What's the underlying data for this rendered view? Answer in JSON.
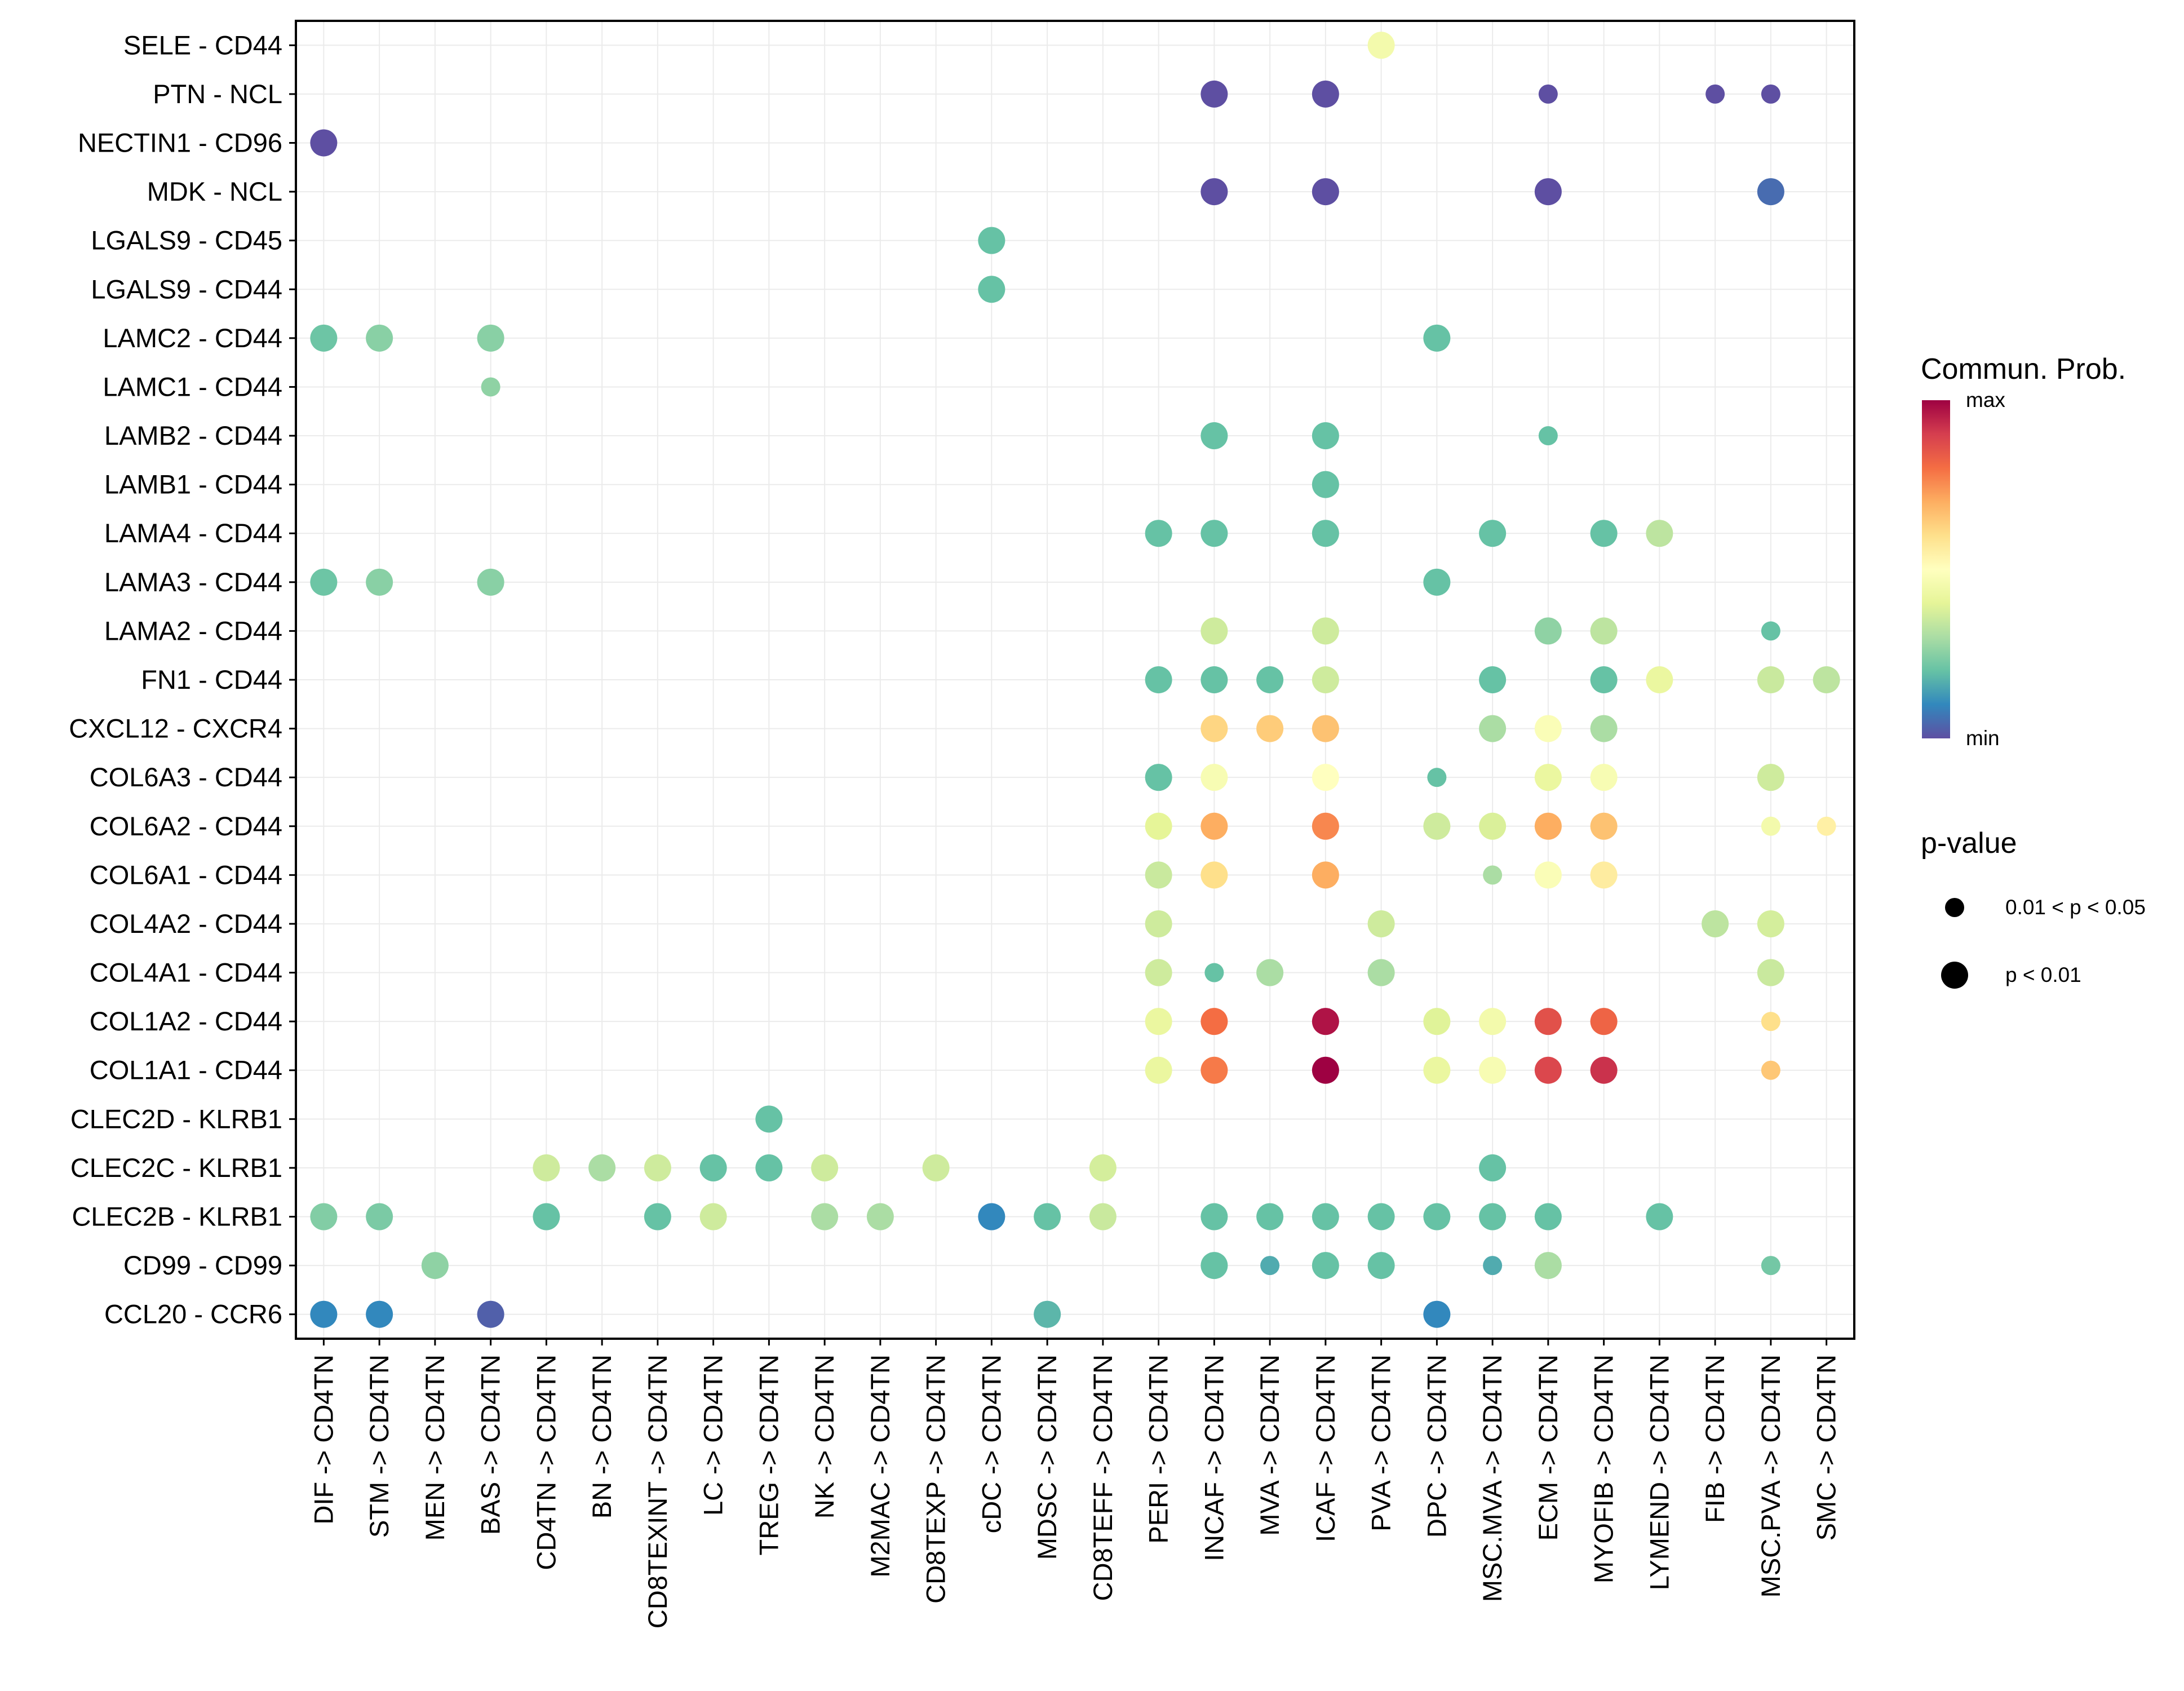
{
  "chart_data": {
    "type": "scatter",
    "subtype": "dot-plot",
    "title": "",
    "xlabel": "",
    "ylabel": "",
    "grid": true,
    "x_categories": [
      "DIF -> CD4TN",
      "STM -> CD4TN",
      "MEN -> CD4TN",
      "BAS -> CD4TN",
      "CD4TN -> CD4TN",
      "BN -> CD4TN",
      "CD8TEXINT -> CD4TN",
      "LC -> CD4TN",
      "TREG -> CD4TN",
      "NK -> CD4TN",
      "M2MAC -> CD4TN",
      "CD8TEXP -> CD4TN",
      "cDC -> CD4TN",
      "MDSC -> CD4TN",
      "CD8TEFF -> CD4TN",
      "PERI -> CD4TN",
      "INCAF -> CD4TN",
      "MVA -> CD4TN",
      "ICAF -> CD4TN",
      "PVA -> CD4TN",
      "DPC -> CD4TN",
      "MSC.MVA -> CD4TN",
      "ECM -> CD4TN",
      "MYOFIB -> CD4TN",
      "LYMEND -> CD4TN",
      "FIB -> CD4TN",
      "MSC.PVA -> CD4TN",
      "SMC -> CD4TN"
    ],
    "y_categories": [
      "SELE - CD44",
      "PTN - NCL",
      "NECTIN1 - CD96",
      "MDK - NCL",
      "LGALS9 - CD45",
      "LGALS9 - CD44",
      "LAMC2 - CD44",
      "LAMC1 - CD44",
      "LAMB2 - CD44",
      "LAMB1 - CD44",
      "LAMA4 - CD44",
      "LAMA3 - CD44",
      "LAMA2 - CD44",
      "FN1 - CD44",
      "CXCL12 - CXCR4",
      "COL6A3 - CD44",
      "COL6A2 - CD44",
      "COL6A1 - CD44",
      "COL4A2 - CD44",
      "COL4A1 - CD44",
      "COL1A2 - CD44",
      "COL1A1 - CD44",
      "CLEC2D - KLRB1",
      "CLEC2C - KLRB1",
      "CLEC2B - KLRB1",
      "CD99 - CD99",
      "CCL20 - CCR6"
    ],
    "color_legend": {
      "title": "Commun. Prob.",
      "max_label": "max",
      "min_label": "min",
      "palette": [
        "#5E4FA2",
        "#3288BD",
        "#66C2A5",
        "#ABDDA4",
        "#E6F598",
        "#FFFFBF",
        "#FEE08B",
        "#FDAE61",
        "#F46D43",
        "#D53E4F",
        "#9E0142"
      ]
    },
    "size_legend": {
      "title": "p-value",
      "levels": [
        {
          "label": "0.01 < p < 0.05",
          "key": "s"
        },
        {
          "label": "p < 0.01",
          "key": "l"
        }
      ]
    },
    "points_columns": [
      "x_index",
      "y_index",
      "prob_relative",
      "p_level"
    ],
    "points": [
      [
        19,
        0,
        0.45,
        "l"
      ],
      [
        16,
        1,
        0.0,
        "l"
      ],
      [
        18,
        1,
        0.0,
        "l"
      ],
      [
        22,
        1,
        0.0,
        "s"
      ],
      [
        25,
        1,
        0.0,
        "s"
      ],
      [
        26,
        1,
        0.0,
        "s"
      ],
      [
        0,
        2,
        0.0,
        "l"
      ],
      [
        16,
        3,
        0.0,
        "l"
      ],
      [
        18,
        3,
        0.0,
        "l"
      ],
      [
        22,
        3,
        0.0,
        "l"
      ],
      [
        26,
        3,
        0.05,
        "l"
      ],
      [
        12,
        4,
        0.2,
        "l"
      ],
      [
        12,
        5,
        0.2,
        "l"
      ],
      [
        0,
        6,
        0.21,
        "l"
      ],
      [
        1,
        6,
        0.25,
        "l"
      ],
      [
        3,
        6,
        0.25,
        "l"
      ],
      [
        20,
        6,
        0.2,
        "l"
      ],
      [
        3,
        7,
        0.26,
        "s"
      ],
      [
        16,
        8,
        0.2,
        "l"
      ],
      [
        18,
        8,
        0.2,
        "l"
      ],
      [
        22,
        8,
        0.2,
        "s"
      ],
      [
        18,
        9,
        0.2,
        "l"
      ],
      [
        15,
        10,
        0.2,
        "l"
      ],
      [
        16,
        10,
        0.2,
        "l"
      ],
      [
        18,
        10,
        0.2,
        "l"
      ],
      [
        21,
        10,
        0.2,
        "l"
      ],
      [
        23,
        10,
        0.2,
        "l"
      ],
      [
        24,
        10,
        0.33,
        "l"
      ],
      [
        0,
        11,
        0.21,
        "l"
      ],
      [
        1,
        11,
        0.25,
        "l"
      ],
      [
        3,
        11,
        0.25,
        "l"
      ],
      [
        20,
        11,
        0.2,
        "l"
      ],
      [
        16,
        12,
        0.36,
        "l"
      ],
      [
        18,
        12,
        0.36,
        "l"
      ],
      [
        22,
        12,
        0.26,
        "l"
      ],
      [
        23,
        12,
        0.33,
        "l"
      ],
      [
        26,
        12,
        0.2,
        "s"
      ],
      [
        15,
        13,
        0.2,
        "l"
      ],
      [
        16,
        13,
        0.2,
        "l"
      ],
      [
        17,
        13,
        0.2,
        "l"
      ],
      [
        18,
        13,
        0.36,
        "l"
      ],
      [
        21,
        13,
        0.2,
        "l"
      ],
      [
        23,
        13,
        0.2,
        "l"
      ],
      [
        24,
        13,
        0.42,
        "l"
      ],
      [
        26,
        13,
        0.35,
        "l"
      ],
      [
        27,
        13,
        0.33,
        "l"
      ],
      [
        16,
        14,
        0.62,
        "l"
      ],
      [
        17,
        14,
        0.64,
        "l"
      ],
      [
        18,
        14,
        0.66,
        "l"
      ],
      [
        21,
        14,
        0.3,
        "l"
      ],
      [
        22,
        14,
        0.48,
        "l"
      ],
      [
        23,
        14,
        0.3,
        "l"
      ],
      [
        15,
        15,
        0.2,
        "l"
      ],
      [
        16,
        15,
        0.47,
        "l"
      ],
      [
        18,
        15,
        0.5,
        "l"
      ],
      [
        20,
        15,
        0.2,
        "s"
      ],
      [
        22,
        15,
        0.42,
        "l"
      ],
      [
        23,
        15,
        0.47,
        "l"
      ],
      [
        26,
        15,
        0.36,
        "l"
      ],
      [
        15,
        16,
        0.4,
        "l"
      ],
      [
        16,
        16,
        0.7,
        "l"
      ],
      [
        18,
        16,
        0.76,
        "l"
      ],
      [
        20,
        16,
        0.36,
        "l"
      ],
      [
        21,
        16,
        0.38,
        "l"
      ],
      [
        22,
        16,
        0.7,
        "l"
      ],
      [
        23,
        16,
        0.66,
        "l"
      ],
      [
        26,
        16,
        0.45,
        "s"
      ],
      [
        27,
        16,
        0.55,
        "s"
      ],
      [
        15,
        17,
        0.35,
        "l"
      ],
      [
        16,
        17,
        0.6,
        "l"
      ],
      [
        18,
        17,
        0.7,
        "l"
      ],
      [
        21,
        17,
        0.3,
        "s"
      ],
      [
        22,
        17,
        0.48,
        "l"
      ],
      [
        23,
        17,
        0.56,
        "l"
      ],
      [
        15,
        18,
        0.36,
        "l"
      ],
      [
        19,
        18,
        0.36,
        "l"
      ],
      [
        25,
        18,
        0.33,
        "l"
      ],
      [
        26,
        18,
        0.37,
        "l"
      ],
      [
        15,
        19,
        0.36,
        "l"
      ],
      [
        16,
        19,
        0.2,
        "s"
      ],
      [
        17,
        19,
        0.3,
        "l"
      ],
      [
        19,
        19,
        0.3,
        "l"
      ],
      [
        26,
        19,
        0.35,
        "l"
      ],
      [
        15,
        20,
        0.42,
        "l"
      ],
      [
        16,
        20,
        0.8,
        "l"
      ],
      [
        18,
        20,
        0.97,
        "l"
      ],
      [
        20,
        20,
        0.39,
        "l"
      ],
      [
        21,
        20,
        0.45,
        "l"
      ],
      [
        22,
        20,
        0.86,
        "l"
      ],
      [
        23,
        20,
        0.82,
        "l"
      ],
      [
        26,
        20,
        0.6,
        "s"
      ],
      [
        15,
        21,
        0.42,
        "l"
      ],
      [
        16,
        21,
        0.78,
        "l"
      ],
      [
        18,
        21,
        1.0,
        "l"
      ],
      [
        20,
        21,
        0.42,
        "l"
      ],
      [
        21,
        21,
        0.47,
        "l"
      ],
      [
        22,
        21,
        0.88,
        "l"
      ],
      [
        23,
        21,
        0.92,
        "l"
      ],
      [
        26,
        21,
        0.65,
        "s"
      ],
      [
        8,
        22,
        0.2,
        "l"
      ],
      [
        4,
        23,
        0.36,
        "l"
      ],
      [
        5,
        23,
        0.3,
        "l"
      ],
      [
        6,
        23,
        0.36,
        "l"
      ],
      [
        7,
        23,
        0.2,
        "l"
      ],
      [
        8,
        23,
        0.2,
        "l"
      ],
      [
        9,
        23,
        0.36,
        "l"
      ],
      [
        11,
        23,
        0.36,
        "l"
      ],
      [
        14,
        23,
        0.37,
        "l"
      ],
      [
        21,
        23,
        0.2,
        "l"
      ],
      [
        0,
        24,
        0.24,
        "l"
      ],
      [
        1,
        24,
        0.23,
        "l"
      ],
      [
        4,
        24,
        0.2,
        "l"
      ],
      [
        6,
        24,
        0.2,
        "l"
      ],
      [
        7,
        24,
        0.36,
        "l"
      ],
      [
        9,
        24,
        0.3,
        "l"
      ],
      [
        10,
        24,
        0.3,
        "l"
      ],
      [
        12,
        24,
        0.1,
        "l"
      ],
      [
        13,
        24,
        0.2,
        "l"
      ],
      [
        14,
        24,
        0.35,
        "l"
      ],
      [
        16,
        24,
        0.2,
        "l"
      ],
      [
        17,
        24,
        0.2,
        "l"
      ],
      [
        18,
        24,
        0.2,
        "l"
      ],
      [
        19,
        24,
        0.2,
        "l"
      ],
      [
        20,
        24,
        0.2,
        "l"
      ],
      [
        21,
        24,
        0.2,
        "l"
      ],
      [
        22,
        24,
        0.2,
        "l"
      ],
      [
        24,
        24,
        0.2,
        "l"
      ],
      [
        2,
        25,
        0.26,
        "l"
      ],
      [
        16,
        25,
        0.2,
        "l"
      ],
      [
        17,
        25,
        0.16,
        "s"
      ],
      [
        18,
        25,
        0.2,
        "l"
      ],
      [
        19,
        25,
        0.2,
        "l"
      ],
      [
        21,
        25,
        0.16,
        "s"
      ],
      [
        22,
        25,
        0.3,
        "l"
      ],
      [
        26,
        25,
        0.22,
        "s"
      ],
      [
        0,
        26,
        0.1,
        "l"
      ],
      [
        1,
        26,
        0.1,
        "l"
      ],
      [
        3,
        26,
        0.03,
        "l"
      ],
      [
        13,
        26,
        0.18,
        "l"
      ],
      [
        20,
        26,
        0.1,
        "l"
      ]
    ]
  }
}
